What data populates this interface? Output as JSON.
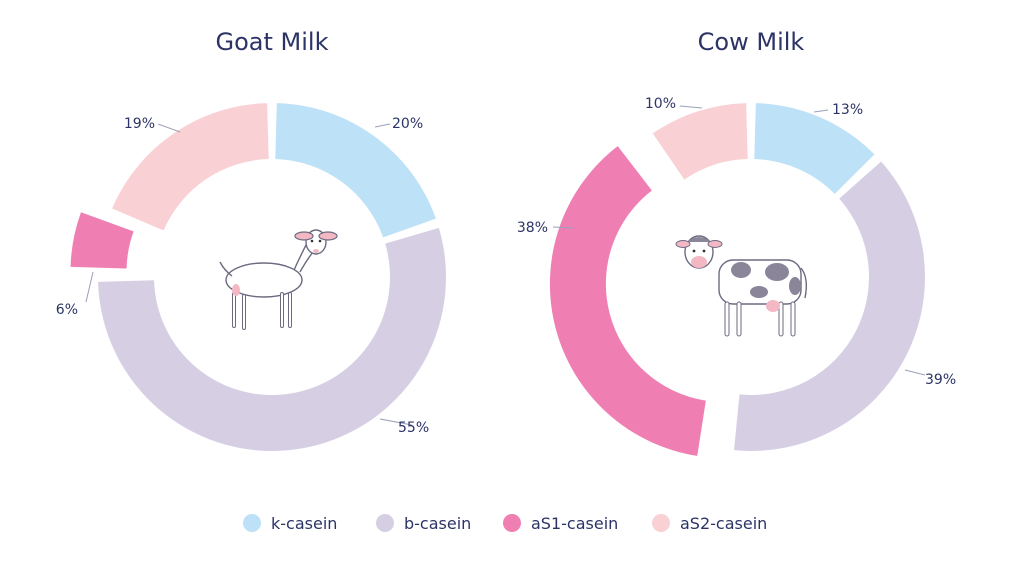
{
  "colors": {
    "k-casein": "#bde1f6",
    "b-casein": "#d6cfe4",
    "aS1-casein": "#ef7fb3",
    "aS2-casein": "#f9d1d5",
    "text": "#2c3466"
  },
  "legend": [
    "k-casein",
    "b-casein",
    "aS1-casein",
    "aS2-casein"
  ],
  "icons": [
    "goat-icon",
    "cow-icon"
  ],
  "chart_data": [
    {
      "type": "pie",
      "variant": "donut",
      "title": "Goat Milk",
      "categories": [
        "k-casein",
        "b-casein",
        "aS1-casein",
        "aS2-casein"
      ],
      "values": [
        20,
        55,
        6,
        19
      ],
      "labels": [
        "20%",
        "55%",
        "6%",
        "19%"
      ],
      "exploded": "aS1-casein"
    },
    {
      "type": "pie",
      "variant": "donut",
      "title": "Cow Milk",
      "categories": [
        "k-casein",
        "b-casein",
        "aS1-casein",
        "aS2-casein"
      ],
      "values": [
        13,
        39,
        38,
        10
      ],
      "labels": [
        "13%",
        "39%",
        "38%",
        "10%"
      ],
      "exploded": "aS1-casein"
    }
  ]
}
